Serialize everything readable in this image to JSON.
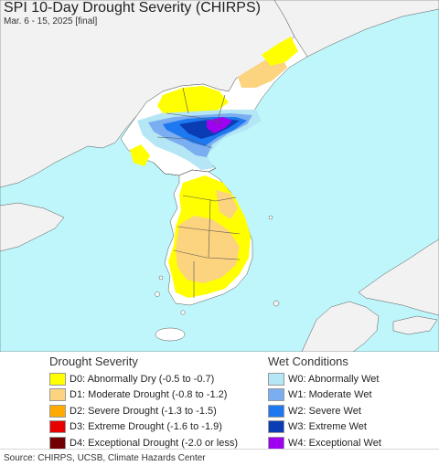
{
  "header": {
    "title": "SPI 10-Day Drought Severity (CHIRPS)",
    "subtitle": "Mar. 6 - 15, 2025 [final]"
  },
  "colors": {
    "ocean": "#bff6fb",
    "land_outside": "#f2f2f2",
    "land": "#ffffff",
    "border": "#555555",
    "D0": "#ffff00",
    "D1": "#fcd37f",
    "D2": "#ffaa00",
    "D3": "#e60000",
    "D4": "#730000",
    "W0": "#b4e6f5",
    "W1": "#7aaef0",
    "W2": "#1e78f0",
    "W3": "#0a3cb4",
    "W4": "#a000f0"
  },
  "legend_drought": {
    "heading": "Drought Severity",
    "items": [
      {
        "code": "D0",
        "label": "D0: Abnormally Dry (-0.5 to -0.7)"
      },
      {
        "code": "D1",
        "label": "D1: Moderate Drought (-0.8 to -1.2)"
      },
      {
        "code": "D2",
        "label": "D2: Severe Drought (-1.3 to -1.5)"
      },
      {
        "code": "D3",
        "label": "D3: Extreme Drought (-1.6 to -1.9)"
      },
      {
        "code": "D4",
        "label": "D4: Exceptional Drought (-2.0 or less)"
      }
    ]
  },
  "legend_wet": {
    "heading": "Wet Conditions",
    "items": [
      {
        "code": "W0",
        "label": "W0: Abnormally Wet"
      },
      {
        "code": "W1",
        "label": "W1: Moderate Wet"
      },
      {
        "code": "W2",
        "label": "W2: Severe Wet"
      },
      {
        "code": "W3",
        "label": "W3: Extreme Wet"
      },
      {
        "code": "W4",
        "label": "W4: Exceptional Wet"
      }
    ]
  },
  "footer": {
    "source": "Source: CHIRPS, UCSB, Climate Hazards Center"
  }
}
